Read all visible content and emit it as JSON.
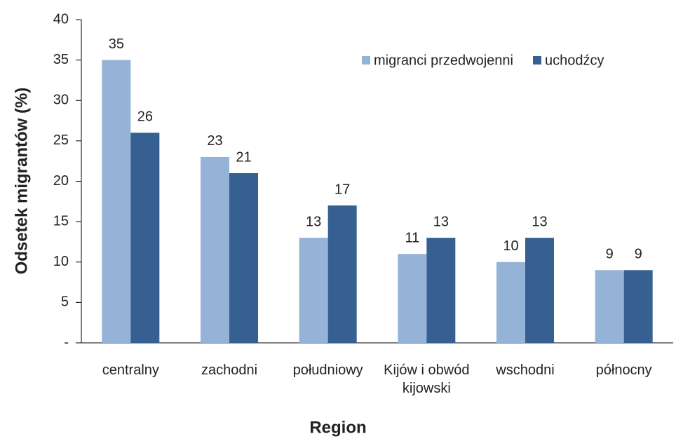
{
  "chart_data": {
    "type": "bar",
    "xlabel": "Region",
    "ylabel": "Odsetek migrantów (%)",
    "categories": [
      "centralny",
      "zachodni",
      "południowy",
      "Kijów i obwód kijowski",
      "wschodni",
      "północny"
    ],
    "series": [
      {
        "name": "migranci przedwojenni",
        "color": "#95b3d7",
        "values": [
          35,
          23,
          13,
          11,
          10,
          9
        ]
      },
      {
        "name": "uchodźcy",
        "color": "#366092",
        "values": [
          26,
          21,
          17,
          13,
          13,
          9
        ]
      }
    ],
    "ylim": [
      0,
      40
    ],
    "yticks": [
      {
        "value": 0,
        "label": "-"
      },
      5,
      10,
      15,
      20,
      25,
      30,
      35,
      40
    ],
    "legend": "upper right"
  }
}
